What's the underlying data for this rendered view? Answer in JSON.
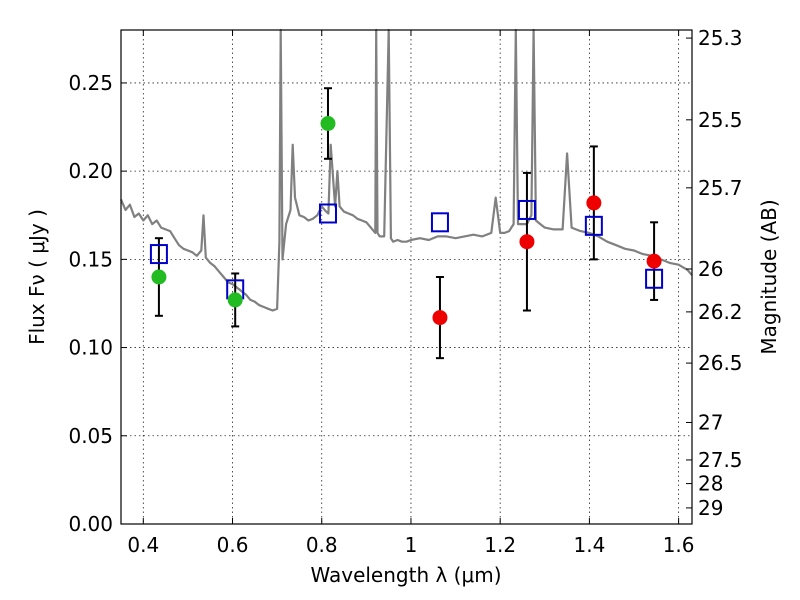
{
  "chart_data": {
    "type": "scatter",
    "xlabel": "Wavelength  λ (μm)",
    "ylabel": "Flux  Fν  ( μJy )",
    "y2label": "Magnitude (AB)",
    "xlim": [
      0.35,
      1.63
    ],
    "ylim": [
      0.0,
      0.28
    ],
    "grid": true,
    "x_ticks": [
      0.4,
      0.6,
      0.8,
      1.0,
      1.2,
      1.4,
      1.6
    ],
    "x_tick_labels": [
      "0.4",
      "0.6",
      "0.8",
      "1",
      "1.2",
      "1.4",
      "1.6"
    ],
    "y_ticks": [
      0.0,
      0.05,
      0.1,
      0.15,
      0.2,
      0.25
    ],
    "y_tick_labels": [
      "0.00",
      "0.05",
      "0.10",
      "0.15",
      "0.20",
      "0.25"
    ],
    "y2_tick_labels": [
      "25.3",
      "25.5",
      "25.7",
      "26",
      "26.2",
      "26.5",
      "27",
      "27.5",
      "28",
      "29"
    ],
    "y2_ticks_mag": [
      25.3,
      25.5,
      25.7,
      26.0,
      26.2,
      26.5,
      27.0,
      27.5,
      28.0,
      29.0
    ],
    "colors": {
      "template": "#808080",
      "green": "#22bb22",
      "red": "#ee0000",
      "model": "#0000cc",
      "errorbar": "#000000"
    },
    "series": [
      {
        "marker": "circle",
        "color": "#22bb22",
        "points": [
          {
            "x": 0.435,
            "y": 0.14,
            "err": 0.022
          },
          {
            "x": 0.606,
            "y": 0.127,
            "err": 0.015
          },
          {
            "x": 0.814,
            "y": 0.227,
            "err": 0.02
          }
        ]
      },
      {
        "marker": "circle",
        "color": "#ee0000",
        "points": [
          {
            "x": 1.065,
            "y": 0.117,
            "err": 0.023
          },
          {
            "x": 1.26,
            "y": 0.16,
            "err": 0.039
          },
          {
            "x": 1.41,
            "y": 0.182,
            "err": 0.032
          },
          {
            "x": 1.545,
            "y": 0.149,
            "err": 0.022
          }
        ]
      },
      {
        "marker": "square",
        "color": "#0000cc",
        "points": [
          {
            "x": 0.435,
            "y": 0.153
          },
          {
            "x": 0.606,
            "y": 0.133
          },
          {
            "x": 0.814,
            "y": 0.176
          },
          {
            "x": 1.065,
            "y": 0.171
          },
          {
            "x": 1.26,
            "y": 0.178
          },
          {
            "x": 1.41,
            "y": 0.169
          },
          {
            "x": 1.545,
            "y": 0.139
          }
        ]
      },
      {
        "marker": "line",
        "color": "#808080",
        "x": [
          0.35,
          0.36,
          0.37,
          0.38,
          0.39,
          0.4,
          0.41,
          0.42,
          0.43,
          0.44,
          0.45,
          0.46,
          0.47,
          0.48,
          0.49,
          0.5,
          0.51,
          0.52,
          0.53,
          0.535,
          0.54,
          0.55,
          0.56,
          0.57,
          0.58,
          0.59,
          0.6,
          0.61,
          0.62,
          0.63,
          0.64,
          0.65,
          0.66,
          0.67,
          0.68,
          0.69,
          0.7,
          0.705,
          0.708,
          0.712,
          0.72,
          0.73,
          0.735,
          0.74,
          0.75,
          0.76,
          0.77,
          0.78,
          0.79,
          0.8,
          0.81,
          0.815,
          0.82,
          0.83,
          0.835,
          0.84,
          0.85,
          0.86,
          0.87,
          0.88,
          0.89,
          0.9,
          0.91,
          0.92,
          0.922,
          0.925,
          0.93,
          0.94,
          0.95,
          0.955,
          0.96,
          0.97,
          0.98,
          0.99,
          1.0,
          1.02,
          1.04,
          1.06,
          1.08,
          1.1,
          1.12,
          1.14,
          1.16,
          1.18,
          1.19,
          1.2,
          1.21,
          1.22,
          1.23,
          1.235,
          1.24,
          1.25,
          1.26,
          1.27,
          1.275,
          1.28,
          1.29,
          1.3,
          1.32,
          1.34,
          1.35,
          1.36,
          1.37,
          1.38,
          1.4,
          1.42,
          1.44,
          1.46,
          1.48,
          1.5,
          1.52,
          1.54,
          1.56,
          1.58,
          1.6,
          1.62,
          1.63
        ],
        "y": [
          0.184,
          0.178,
          0.181,
          0.174,
          0.176,
          0.172,
          0.175,
          0.17,
          0.172,
          0.168,
          0.167,
          0.166,
          0.162,
          0.158,
          0.156,
          0.155,
          0.154,
          0.152,
          0.155,
          0.175,
          0.151,
          0.148,
          0.146,
          0.143,
          0.14,
          0.137,
          0.136,
          0.134,
          0.132,
          0.13,
          0.127,
          0.126,
          0.124,
          0.123,
          0.122,
          0.121,
          0.122,
          0.16,
          0.28,
          0.15,
          0.17,
          0.178,
          0.215,
          0.185,
          0.175,
          0.174,
          0.172,
          0.173,
          0.175,
          0.18,
          0.177,
          0.176,
          0.215,
          0.18,
          0.2,
          0.18,
          0.177,
          0.176,
          0.175,
          0.173,
          0.172,
          0.171,
          0.168,
          0.165,
          0.28,
          0.165,
          0.163,
          0.163,
          0.28,
          0.162,
          0.16,
          0.161,
          0.16,
          0.16,
          0.161,
          0.162,
          0.161,
          0.163,
          0.163,
          0.162,
          0.163,
          0.164,
          0.163,
          0.165,
          0.185,
          0.165,
          0.165,
          0.166,
          0.17,
          0.28,
          0.17,
          0.17,
          0.17,
          0.175,
          0.28,
          0.172,
          0.17,
          0.168,
          0.167,
          0.167,
          0.21,
          0.168,
          0.167,
          0.166,
          0.165,
          0.163,
          0.16,
          0.158,
          0.156,
          0.155,
          0.153,
          0.152,
          0.15,
          0.148,
          0.147,
          0.144,
          0.141
        ]
      }
    ]
  }
}
